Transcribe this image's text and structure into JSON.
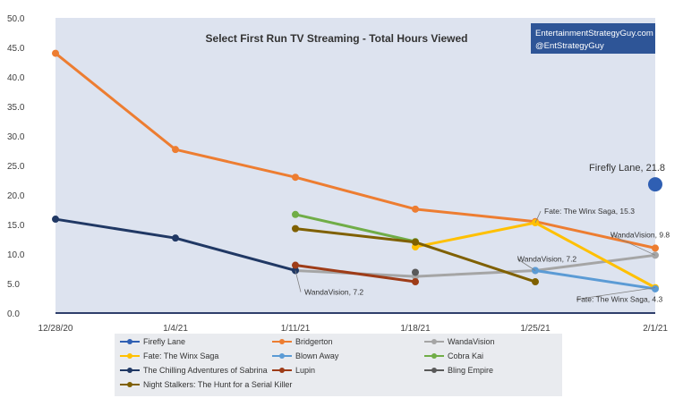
{
  "chart_data": {
    "type": "line",
    "title": "Select First Run TV Streaming - Total Hours Viewed",
    "xlabel": "",
    "ylabel": "",
    "categories": [
      "12/28/20",
      "1/4/21",
      "1/11/21",
      "1/18/21",
      "1/25/21",
      "2/1/21"
    ],
    "ylim": [
      0,
      50
    ],
    "yticks": [
      "0.0",
      "5.0",
      "10.0",
      "15.0",
      "20.0",
      "25.0",
      "30.0",
      "35.0",
      "40.0",
      "45.0",
      "50.0"
    ],
    "grid": false,
    "legend_position": "bottom",
    "series": [
      {
        "name": "Firefly Lane",
        "color": "#2f5fb3",
        "values": [
          null,
          null,
          null,
          null,
          null,
          21.8
        ]
      },
      {
        "name": "Bridgerton",
        "color": "#ed7d31",
        "values": [
          44.0,
          27.7,
          23.0,
          17.6,
          15.5,
          11.0
        ]
      },
      {
        "name": "WandaVision",
        "color": "#a5a5a5",
        "values": [
          null,
          null,
          7.2,
          6.2,
          7.2,
          9.8
        ]
      },
      {
        "name": "Fate: The Winx Saga",
        "color": "#ffc000",
        "values": [
          null,
          null,
          null,
          11.2,
          15.3,
          4.3
        ]
      },
      {
        "name": "Blown Away",
        "color": "#5b9bd5",
        "values": [
          null,
          null,
          null,
          null,
          7.2,
          4.1
        ]
      },
      {
        "name": "Cobra Kai",
        "color": "#70ad47",
        "values": [
          null,
          null,
          16.7,
          12.1,
          null,
          null
        ]
      },
      {
        "name": "The Chilling Adventures of Sabrina",
        "color": "#203864",
        "values": [
          15.9,
          12.7,
          7.2,
          null,
          null,
          null
        ]
      },
      {
        "name": "Lupin",
        "color": "#9e3c18",
        "values": [
          null,
          null,
          8.1,
          5.3,
          null,
          null
        ]
      },
      {
        "name": "Bling Empire",
        "color": "#595959",
        "values": [
          null,
          null,
          null,
          6.9,
          null,
          null
        ]
      },
      {
        "name": "Night Stalkers: The Hunt for a Serial Killer",
        "color": "#7f6000",
        "values": [
          null,
          null,
          14.3,
          12.0,
          5.3,
          null
        ]
      }
    ],
    "annotations": [
      {
        "text": "Firefly Lane, 21.8",
        "x": "2/1/21",
        "y": 21.8
      },
      {
        "text": "WandaVision, 9.8",
        "x": "2/1/21",
        "y": 9.8
      },
      {
        "text": "Fate: The Winx Saga, 15.3",
        "x": "1/25/21",
        "y": 15.3
      },
      {
        "text": "WandaVision, 7.2",
        "x": "1/25/21",
        "y": 7.2
      },
      {
        "text": "Fate: The Winx Saga, 4.3",
        "x": "2/1/21",
        "y": 4.3
      },
      {
        "text": "WandaVision, 7.2",
        "x": "1/11/21",
        "y": 7.2
      }
    ],
    "watermark": [
      "EntertainmentStrategyGuy.com",
      "@EntStrategyGuy"
    ],
    "plot_background": "#dde3ef",
    "watermark_background": "#2e5597"
  }
}
